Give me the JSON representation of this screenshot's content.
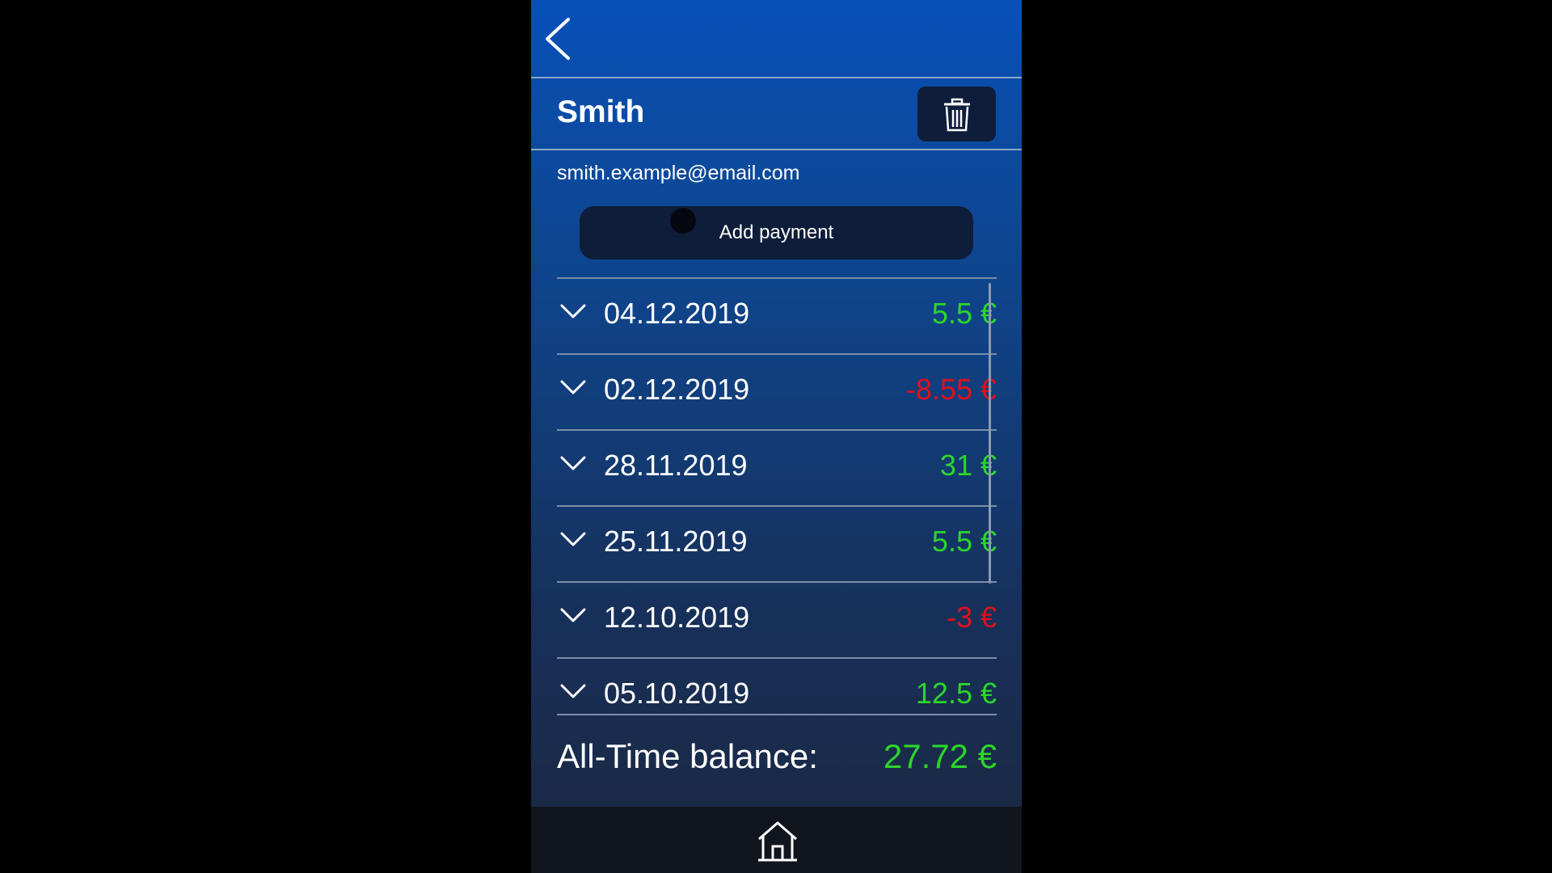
{
  "colors": {
    "positive": "#2bd62b",
    "negative": "#e0101e"
  },
  "header": {
    "back_icon": "chevron-left-icon"
  },
  "contact": {
    "name": "Smith",
    "email": "smith.example@email.com",
    "delete_icon": "trash-icon"
  },
  "actions": {
    "add_payment_label": "Add payment"
  },
  "payments": [
    {
      "date": "04.12.2019",
      "amount": "5.5 €",
      "sign": "positive"
    },
    {
      "date": "02.12.2019",
      "amount": "-8.55 €",
      "sign": "negative"
    },
    {
      "date": "28.11.2019",
      "amount": "31 €",
      "sign": "positive"
    },
    {
      "date": "25.11.2019",
      "amount": "5.5 €",
      "sign": "positive"
    },
    {
      "date": "12.10.2019",
      "amount": "-3 €",
      "sign": "negative"
    },
    {
      "date": "05.10.2019",
      "amount": "12.5 €",
      "sign": "positive"
    }
  ],
  "balance": {
    "label": "All-Time balance:",
    "value": "27.72 €",
    "sign": "positive"
  },
  "footer": {
    "home_icon": "home-icon"
  }
}
